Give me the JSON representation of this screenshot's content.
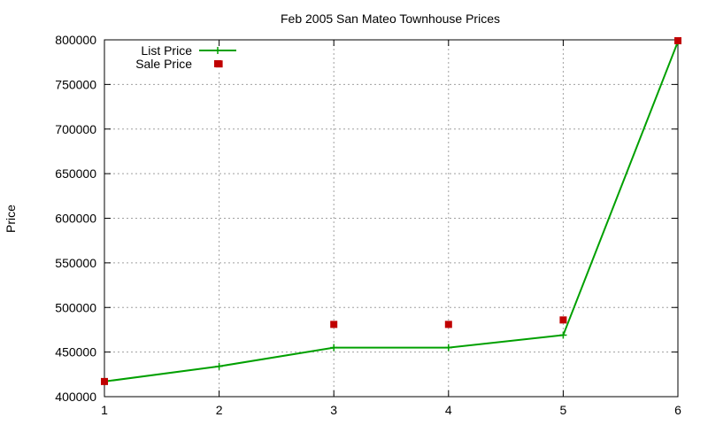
{
  "chart_data": {
    "type": "line",
    "title": "Feb 2005 San Mateo Townhouse Prices",
    "xlabel": "",
    "ylabel": "Price",
    "xlim": [
      1,
      6
    ],
    "ylim": [
      400000,
      800000
    ],
    "x_ticks": [
      1,
      2,
      3,
      4,
      5,
      6
    ],
    "y_ticks": [
      400000,
      450000,
      500000,
      550000,
      600000,
      650000,
      700000,
      750000,
      800000
    ],
    "grid": true,
    "legend_position": "top-left",
    "series": [
      {
        "name": "List Price",
        "style": "line-with-plus-markers",
        "color": "#00a000",
        "x": [
          1,
          2,
          3,
          4,
          5,
          6
        ],
        "y": [
          417000,
          434000,
          455000,
          455000,
          469000,
          798000
        ]
      },
      {
        "name": "Sale Price",
        "style": "square-markers",
        "color": "#c00000",
        "x": [
          1,
          2,
          3,
          4,
          5,
          6
        ],
        "y": [
          417000,
          773000,
          481000,
          481000,
          486000,
          799000
        ]
      }
    ]
  }
}
